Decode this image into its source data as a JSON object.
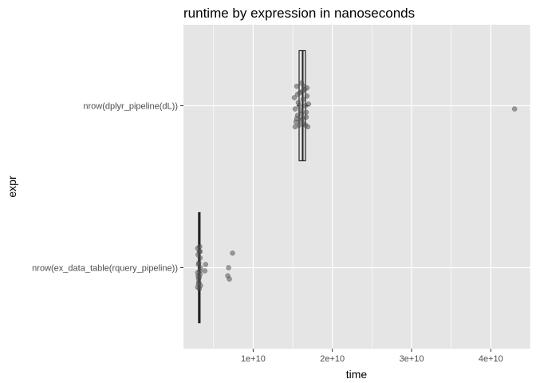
{
  "chart_data": {
    "type": "boxplot",
    "title": "runtime by expression in nanoseconds",
    "xlabel": "time",
    "ylabel": "expr",
    "orientation": "horizontal",
    "xlim": [
      1200000000.0,
      45000000000.0
    ],
    "x_ticks": [
      10000000000.0,
      20000000000.0,
      30000000000.0,
      40000000000.0
    ],
    "x_tick_labels": [
      "1e+10",
      "2e+10",
      "3e+10",
      "4e+10"
    ],
    "grid": true,
    "colors": {
      "panel": "#E5E5E5",
      "grid": "#FFFFFF",
      "box": "#222222",
      "point": "#555555"
    },
    "series": [
      {
        "name": "nrow(dplyr_pipeline(dL))",
        "box": {
          "min": 15500000000.0,
          "q1": 15800000000.0,
          "median": 16250000000.0,
          "q3": 16600000000.0,
          "max": 17000000000.0
        },
        "points": [
          [
            15200000000.0,
            -0.05
          ],
          [
            15300000000.0,
            0.02
          ],
          [
            15400000000.0,
            0.1
          ],
          [
            15500000000.0,
            -0.12
          ],
          [
            15600000000.0,
            0.06
          ],
          [
            15700000000.0,
            -0.02
          ],
          [
            15800000000.0,
            0.12
          ],
          [
            15900000000.0,
            -0.08
          ],
          [
            16000000000.0,
            0.03
          ],
          [
            16100000000.0,
            -0.14
          ],
          [
            16200000000.0,
            0.08
          ],
          [
            16300000000.0,
            -0.04
          ],
          [
            16400000000.0,
            0.11
          ],
          [
            16500000000.0,
            -0.1
          ],
          [
            16600000000.0,
            0.0
          ],
          [
            16700000000.0,
            0.07
          ],
          [
            16800000000.0,
            -0.06
          ],
          [
            16900000000.0,
            0.13
          ],
          [
            17000000000.0,
            -0.01
          ],
          [
            15600000000.0,
            -0.07
          ],
          [
            16000000000.0,
            0.09
          ],
          [
            16400000000.0,
            -0.12
          ],
          [
            16700000000.0,
            0.04
          ],
          [
            15800000000.0,
            0.0
          ],
          [
            16200000000.0,
            -0.09
          ],
          [
            15300000000.0,
            0.13
          ],
          [
            16600000000.0,
            0.12
          ],
          [
            16100000000.0,
            0.05
          ],
          [
            15500000000.0,
            0.08
          ],
          [
            16800000000.0,
            -0.11
          ],
          [
            43000000000.0,
            0.02
          ]
        ]
      },
      {
        "name": "nrow(ex_data_table(rquery_pipeline))",
        "box": {
          "min": 3000000000.0,
          "q1": 3100000000.0,
          "median": 3200000000.0,
          "q3": 3300000000.0,
          "max": 3400000000.0
        },
        "points": [
          [
            3000000000.0,
            0.12
          ],
          [
            3050000000.0,
            0.05
          ],
          [
            3100000000.0,
            -0.02
          ],
          [
            3150000000.0,
            0.09
          ],
          [
            3200000000.0,
            -0.1
          ],
          [
            3250000000.0,
            0.02
          ],
          [
            3300000000.0,
            -0.06
          ],
          [
            3350000000.0,
            0.11
          ],
          [
            3000000000.0,
            -0.12
          ],
          [
            3100000000.0,
            0.07
          ],
          [
            3200000000.0,
            0.13
          ],
          [
            3300000000.0,
            0.04
          ],
          [
            3050000000.0,
            -0.08
          ],
          [
            3150000000.0,
            -0.03
          ],
          [
            3250000000.0,
            -0.13
          ],
          [
            3350000000.0,
            0.0
          ],
          [
            3100000000.0,
            0.1
          ],
          [
            3200000000.0,
            0.06
          ],
          [
            3000000000.0,
            0.03
          ],
          [
            3300000000.0,
            -0.1
          ],
          [
            4000000000.0,
            -0.02
          ],
          [
            3900000000.0,
            0.02
          ],
          [
            6800000000.0,
            0.05
          ],
          [
            7000000000.0,
            0.07
          ],
          [
            6900000000.0,
            0.0
          ],
          [
            7400000000.0,
            -0.09
          ]
        ]
      }
    ]
  }
}
